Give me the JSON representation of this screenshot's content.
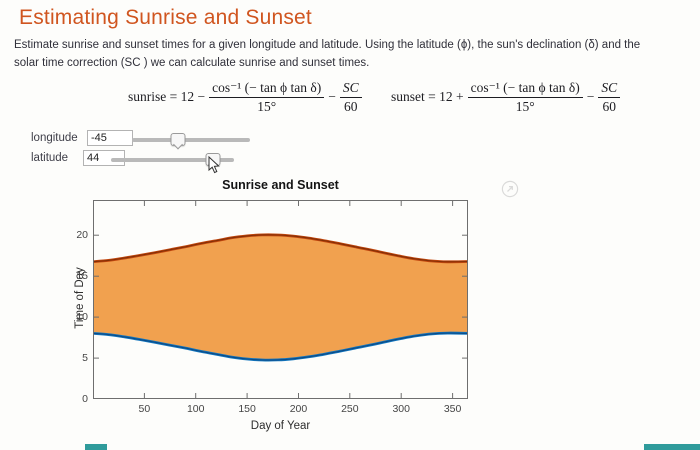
{
  "header": {
    "title": "Estimating Sunrise and Sunset",
    "color": "#d0551f"
  },
  "intro": {
    "line1": "Estimate sunrise and sunset times for a given longitude and latitude.  Using the  latitude (ϕ), the sun's declination (δ) and the",
    "line2": "solar time correction (SC ) we can calculate sunrise and sunset times."
  },
  "formulas": {
    "sunrise": {
      "lead": "sunrise = 12 −",
      "num": "cos⁻¹ (− tan ϕ tan δ)",
      "den": "15°",
      "op": "−",
      "num2": "SC",
      "den2": "60"
    },
    "sunset": {
      "lead": "sunset = 12 +",
      "num": "cos⁻¹ (− tan ϕ tan δ)",
      "den": "15°",
      "op": "−",
      "num2": "SC",
      "den2": "60"
    }
  },
  "controls": {
    "longitude": {
      "label": "longitude",
      "value": "-45",
      "slider_pos": 38.6
    },
    "latitude": {
      "label": "latitude",
      "value": "44",
      "slider_pos": 82.8
    }
  },
  "figure": {
    "popout_icon": "popout-arrow-icon"
  },
  "chart_data": {
    "type": "area",
    "title": "Sunrise and Sunset",
    "xlabel": "Day of Year",
    "ylabel": "Time of Day",
    "xlim": [
      0,
      365
    ],
    "ylim": [
      0,
      24.3
    ],
    "xticks": [
      50,
      100,
      150,
      200,
      250,
      300,
      350
    ],
    "yticks": [
      0,
      5,
      10,
      15,
      20
    ],
    "grid": false,
    "legend": "none",
    "fill_color": "#F1A14F",
    "x": [
      1,
      15,
      30,
      45,
      60,
      75,
      90,
      105,
      120,
      135,
      150,
      165,
      180,
      195,
      210,
      225,
      240,
      255,
      270,
      285,
      300,
      315,
      330,
      345,
      365
    ],
    "series": [
      {
        "name": "sunrise",
        "color": "#1276BE",
        "core": "#0C4A86",
        "values": [
          8.01,
          7.87,
          7.6,
          7.28,
          6.93,
          6.57,
          6.21,
          5.81,
          5.47,
          5.12,
          4.88,
          4.76,
          4.77,
          4.91,
          5.15,
          5.47,
          5.83,
          6.21,
          6.59,
          7.0,
          7.39,
          7.72,
          7.95,
          8.05,
          8.01
        ]
      },
      {
        "name": "sunset",
        "color": "#C2470E",
        "core": "#822F06",
        "values": [
          16.78,
          16.93,
          17.2,
          17.52,
          17.87,
          18.23,
          18.59,
          18.99,
          19.33,
          19.68,
          19.92,
          20.04,
          20.03,
          19.89,
          19.65,
          19.33,
          18.97,
          18.59,
          18.21,
          17.8,
          17.41,
          17.08,
          16.85,
          16.75,
          16.79
        ]
      }
    ]
  },
  "artifact_bars": {
    "color": "#2f9b9b"
  }
}
